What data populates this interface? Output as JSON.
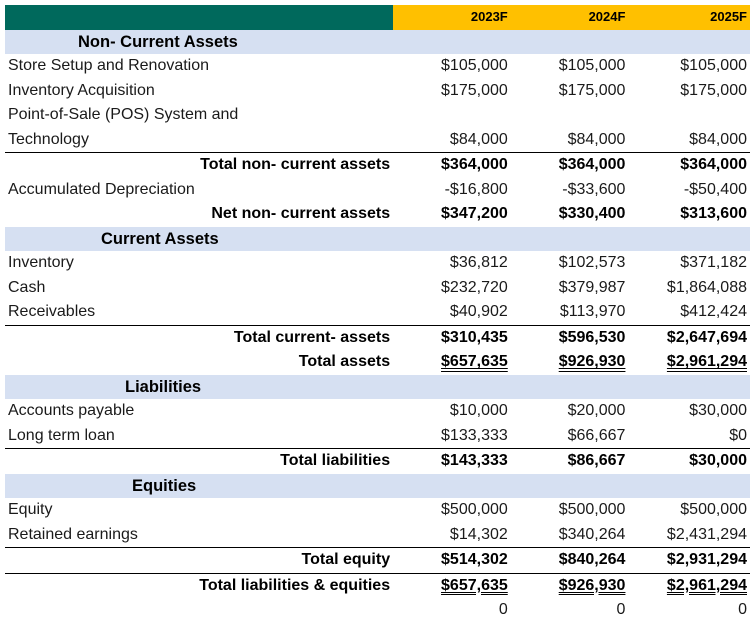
{
  "header": {
    "years": [
      "2023F",
      "2024F",
      "2025F"
    ]
  },
  "rows": [
    {
      "type": "section",
      "label": "Non- Current Assets",
      "indent": 73,
      "values": [
        "",
        "",
        ""
      ]
    },
    {
      "type": "item",
      "label": "Store Setup and Renovation",
      "values": [
        "$105,000",
        "$105,000",
        "$105,000"
      ]
    },
    {
      "type": "item",
      "label": "Inventory Acquisition",
      "values": [
        "$175,000",
        "$175,000",
        "$175,000"
      ]
    },
    {
      "type": "item",
      "label": "Point-of-Sale (POS) System and",
      "values": [
        "",
        "",
        ""
      ]
    },
    {
      "type": "item",
      "label": "Technology",
      "values": [
        "$84,000",
        "$84,000",
        "$84,000"
      ]
    },
    {
      "type": "total",
      "sep": true,
      "label": "Total non- current assets",
      "values": [
        "$364,000",
        "$364,000",
        "$364,000"
      ]
    },
    {
      "type": "item",
      "label": "Accumulated Depreciation",
      "values": [
        "-$16,800",
        "-$33,600",
        "-$50,400"
      ]
    },
    {
      "type": "total",
      "label": "Net non- current assets",
      "values": [
        "$347,200",
        "$330,400",
        "$313,600"
      ]
    },
    {
      "type": "section",
      "label": "Current Assets",
      "indent": 96,
      "values": [
        "",
        "",
        ""
      ]
    },
    {
      "type": "item",
      "label": "Inventory",
      "values": [
        "$36,812",
        "$102,573",
        "$371,182"
      ]
    },
    {
      "type": "item",
      "label": "Cash",
      "values": [
        "$232,720",
        "$379,987",
        "$1,864,088"
      ]
    },
    {
      "type": "item",
      "label": "Receivables",
      "values": [
        "$40,902",
        "$113,970",
        "$412,424"
      ]
    },
    {
      "type": "total",
      "sep": true,
      "label": "Total current- assets",
      "values": [
        "$310,435",
        "$596,530",
        "$2,647,694"
      ]
    },
    {
      "type": "total",
      "dbl": true,
      "label": "Total assets",
      "values": [
        "$657,635",
        "$926,930",
        "$2,961,294"
      ]
    },
    {
      "type": "section",
      "label": "Liabilities",
      "indent": 120,
      "values": [
        "",
        "",
        ""
      ]
    },
    {
      "type": "item",
      "label": "Accounts payable",
      "values": [
        "$10,000",
        "$20,000",
        "$30,000"
      ]
    },
    {
      "type": "item",
      "label": "Long term loan",
      "values": [
        "$133,333",
        "$66,667",
        "$0"
      ]
    },
    {
      "type": "total",
      "sep": true,
      "label": "Total liabilities",
      "values": [
        "$143,333",
        "$86,667",
        "$30,000"
      ]
    },
    {
      "type": "section",
      "label": "Equities",
      "indent": 127,
      "values": [
        "",
        "",
        ""
      ]
    },
    {
      "type": "item",
      "label": "Equity",
      "values": [
        "$500,000",
        "$500,000",
        "$500,000"
      ]
    },
    {
      "type": "item",
      "label": "Retained earnings",
      "values": [
        "$14,302",
        "$340,264",
        "$2,431,294"
      ]
    },
    {
      "type": "total",
      "sep": true,
      "label": "Total equity",
      "values": [
        "$514,302",
        "$840,264",
        "$2,931,294"
      ]
    },
    {
      "type": "total",
      "dbl": true,
      "sep": true,
      "label": "Total liabilities & equities",
      "values": [
        "$657,635",
        "$926,930",
        "$2,961,294"
      ]
    },
    {
      "type": "zero",
      "label": "",
      "values": [
        "0",
        "0",
        "0"
      ]
    }
  ]
}
